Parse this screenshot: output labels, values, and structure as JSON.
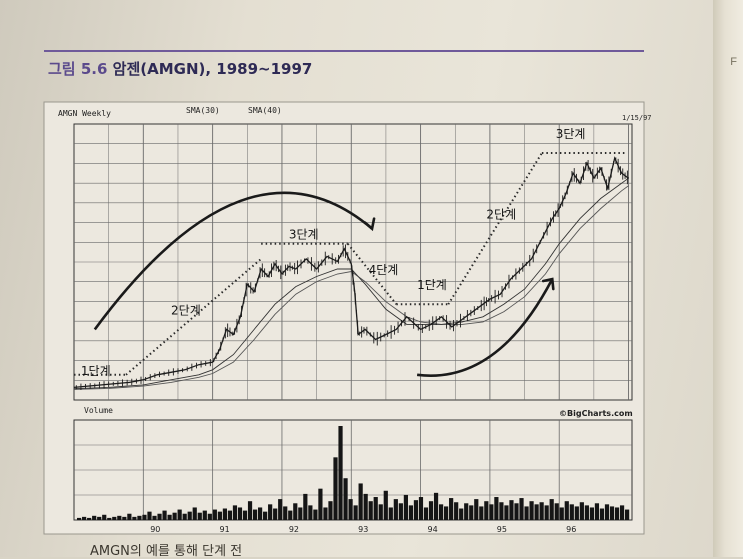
{
  "figure": {
    "number": "그림 5.6",
    "title": "암젠(AMGN), 1989~1997"
  },
  "caption": "AMGN의 예를 통해 단계 전",
  "side_mark": "F",
  "colors": {
    "title": "#2e2a55",
    "rule": "#6f5a9a",
    "ink": "#1c1c1c",
    "grid": "#6a6a6a"
  },
  "chart_data": {
    "type": "line",
    "header_left": "AMGN Weekly",
    "legend": [
      "SMA(30)",
      "SMA(40)"
    ],
    "header_right": "1/15/97",
    "volume_label": "Volume",
    "credit": "©BigCharts.com",
    "x_ticks": [
      "90",
      "91",
      "92",
      "93",
      "94",
      "95",
      "96"
    ],
    "x_range": [
      1989.0,
      1997.05
    ],
    "y_range": [
      0,
      100
    ],
    "price_series": {
      "x": [
        1989.0,
        1989.2,
        1989.4,
        1989.6,
        1989.8,
        1990.0,
        1990.2,
        1990.4,
        1990.6,
        1990.8,
        1991.0,
        1991.1,
        1991.2,
        1991.3,
        1991.4,
        1991.5,
        1991.6,
        1991.7,
        1991.8,
        1991.9,
        1992.0,
        1992.1,
        1992.2,
        1992.35,
        1992.5,
        1992.65,
        1992.8,
        1992.9,
        1993.0,
        1993.05,
        1993.1,
        1993.2,
        1993.35,
        1993.5,
        1993.65,
        1993.8,
        1994.0,
        1994.15,
        1994.3,
        1994.45,
        1994.6,
        1994.75,
        1994.9,
        1995.0,
        1995.15,
        1995.3,
        1995.45,
        1995.6,
        1995.75,
        1995.9,
        1996.0,
        1996.1,
        1996.2,
        1996.3,
        1996.4,
        1996.5,
        1996.6,
        1996.7,
        1996.8,
        1996.9,
        1997.0
      ],
      "y": [
        5,
        5.5,
        6,
        6.5,
        7,
        8,
        10,
        11,
        12,
        14,
        15,
        20,
        28,
        26,
        33,
        46,
        43,
        52,
        49,
        54,
        50,
        53,
        52,
        56,
        52,
        57,
        55,
        60,
        54,
        43,
        26,
        28,
        24,
        26,
        28,
        33,
        28,
        30,
        33,
        29,
        32,
        35,
        38,
        40,
        42,
        48,
        52,
        56,
        64,
        72,
        76,
        82,
        90,
        86,
        94,
        88,
        92,
        84,
        96,
        90,
        88
      ]
    },
    "sma30": {
      "x": [
        1989.0,
        1989.5,
        1990.0,
        1990.4,
        1990.8,
        1991.0,
        1991.3,
        1991.6,
        1991.9,
        1992.2,
        1992.5,
        1992.8,
        1993.0,
        1993.2,
        1993.5,
        1993.8,
        1994.0,
        1994.3,
        1994.6,
        1994.9,
        1995.2,
        1995.5,
        1995.8,
        1996.0,
        1996.3,
        1996.6,
        1996.9,
        1997.0
      ],
      "y": [
        4.5,
        5,
        6,
        8,
        10,
        12,
        18,
        28,
        38,
        45,
        49,
        52,
        52,
        46,
        36,
        30,
        30,
        30,
        31,
        33,
        38,
        44,
        54,
        62,
        72,
        80,
        86,
        88
      ]
    },
    "sma40": {
      "x": [
        1989.0,
        1989.5,
        1990.0,
        1990.4,
        1990.8,
        1991.0,
        1991.3,
        1991.6,
        1991.9,
        1992.2,
        1992.5,
        1992.8,
        1993.0,
        1993.2,
        1993.5,
        1993.8,
        1994.0,
        1994.3,
        1994.6,
        1994.9,
        1995.2,
        1995.5,
        1995.8,
        1996.0,
        1996.3,
        1996.6,
        1996.9,
        1997.0
      ],
      "y": [
        4.2,
        4.6,
        5.5,
        7,
        9,
        10.5,
        15,
        24,
        34,
        42,
        47,
        50,
        51,
        47,
        39,
        33,
        31,
        30,
        30,
        31,
        35,
        41,
        50,
        58,
        68,
        76,
        83,
        85
      ]
    },
    "volume": [
      2,
      3,
      2,
      4,
      3,
      5,
      2,
      3,
      4,
      3,
      6,
      3,
      4,
      5,
      8,
      4,
      6,
      9,
      5,
      7,
      10,
      6,
      8,
      12,
      7,
      9,
      6,
      10,
      8,
      11,
      9,
      14,
      12,
      9,
      18,
      10,
      12,
      8,
      15,
      11,
      20,
      13,
      9,
      16,
      12,
      25,
      14,
      10,
      30,
      12,
      18,
      60,
      90,
      40,
      20,
      14,
      35,
      25,
      18,
      22,
      15,
      28,
      12,
      20,
      16,
      24,
      14,
      19,
      22,
      12,
      18,
      26,
      15,
      13,
      21,
      17,
      11,
      16,
      14,
      20,
      13,
      18,
      15,
      22,
      17,
      14,
      19,
      16,
      21,
      13,
      18,
      15,
      17,
      14,
      20,
      16,
      12,
      18,
      15,
      13,
      17,
      14,
      12,
      16,
      11,
      15,
      13,
      12,
      14,
      10
    ]
  },
  "annotations": [
    {
      "text": "1단계",
      "x": 1989.1,
      "y": 10
    },
    {
      "text": "2단계",
      "x": 1990.4,
      "y": 34
    },
    {
      "text": "3단계",
      "x": 1992.1,
      "y": 64
    },
    {
      "text": "4단계",
      "x": 1993.25,
      "y": 50
    },
    {
      "text": "1단계",
      "x": 1993.95,
      "y": 44
    },
    {
      "text": "2단계",
      "x": 1994.95,
      "y": 72
    },
    {
      "text": "3단계",
      "x": 1995.95,
      "y": 104
    }
  ]
}
